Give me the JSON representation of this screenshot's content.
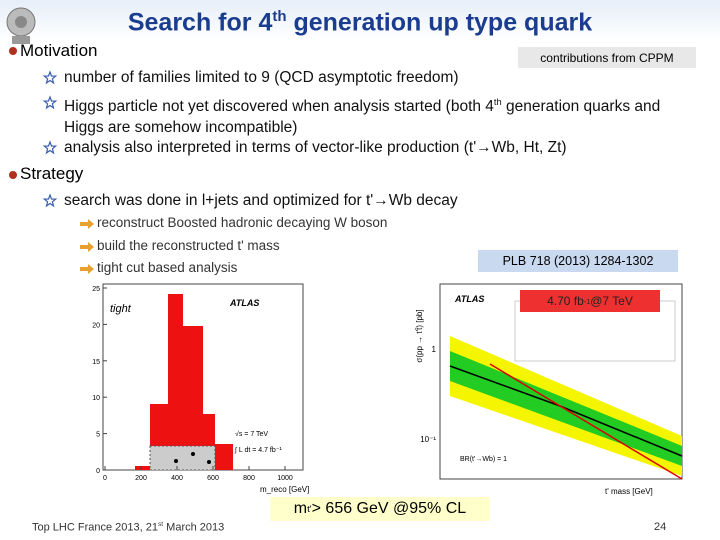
{
  "header": {
    "title": [
      "Search for 4",
      "th",
      " generation up type quark"
    ]
  },
  "sections": [
    {
      "heading": "Motivation",
      "items": [
        [
          "number of families limited to 9 (QCD asymptotic freedom)"
        ],
        [
          "Higgs particle not yet discovered when analysis started (both 4",
          "th",
          " generation quarks and Higgs are somehow incompatible)"
        ],
        [
          "analysis also interpreted in terms of vector-like production (t'→Wb, Ht, Zt)"
        ]
      ]
    },
    {
      "heading": "Strategy",
      "items": [
        [
          "search was done in l+jets and optimized for t'→Wb decay"
        ]
      ],
      "subitems": [
        "reconstruct Boosted hadronic decaying W boson",
        "build the reconstructed t' mass",
        "tight cut based analysis"
      ]
    }
  ],
  "notes": {
    "cppm": "contributions from CPPM",
    "reference": "PLB 718 (2013) 1284-1302",
    "luminosity": [
      "4.70 fb",
      "-1",
      " @7 TeV"
    ],
    "result": [
      "m",
      "t'",
      "> 656 GeV @95% CL"
    ]
  },
  "left_plot": {
    "experiment": "ATLAS",
    "region": "tight",
    "energy": "√s = 7 TeV",
    "lumi": "∫ L dt = 4.7 fb⁻¹",
    "xlabel": "m_reco [GeV]",
    "xticks": [
      0,
      200,
      400,
      600,
      800,
      1000
    ],
    "yticks": [
      0,
      5,
      10,
      15,
      20,
      25
    ]
  },
  "right_plot": {
    "experiment": "ATLAS",
    "br": "BR(t'→Wb) = 1",
    "xlabel": "t' mass [GeV]",
    "ylabel": "σ(pp → t't̄) [pb]",
    "yticks": [
      "1",
      "10⁻¹"
    ]
  },
  "footer": {
    "event": [
      "Top LHC France 2013, 21",
      "st",
      " March 2013"
    ],
    "page": "24"
  }
}
